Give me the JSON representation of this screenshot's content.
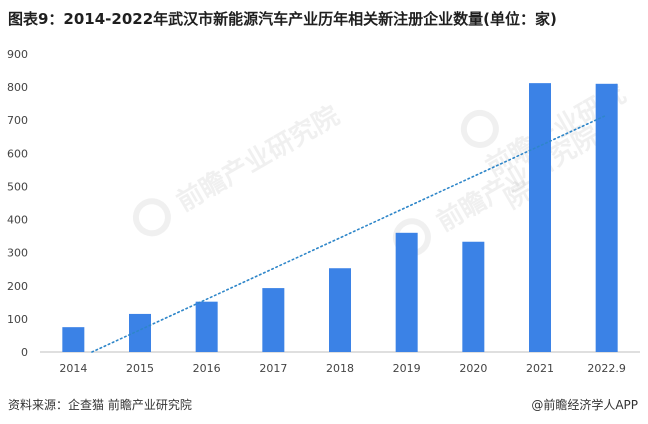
{
  "title": "图表9：2014-2022年武汉市新能源汽车产业历年相关新注册企业数量(单位：家)",
  "source": "资料来源：企查猫 前瞻产业研究院",
  "credit": "@前瞻经济学人APP",
  "watermark": {
    "text": "前瞻产业研究院",
    "icon": "qianzhan-logo-icon"
  },
  "colors": {
    "bar": "#3b82e6",
    "trend": "#2e86c9",
    "axis": "#bfbfbf",
    "text": "#444444"
  },
  "chart_data": {
    "type": "bar",
    "categories": [
      "2014",
      "2015",
      "2016",
      "2017",
      "2018",
      "2019",
      "2020",
      "2021",
      "2022.9"
    ],
    "values": [
      75,
      115,
      152,
      193,
      253,
      360,
      333,
      812,
      810
    ],
    "ylim": [
      0,
      900
    ],
    "yticks": [
      0,
      100,
      200,
      300,
      400,
      500,
      600,
      700,
      800,
      900
    ],
    "trendline": {
      "style": "dotted",
      "type": "linear"
    },
    "grid": false,
    "legend": "none"
  }
}
